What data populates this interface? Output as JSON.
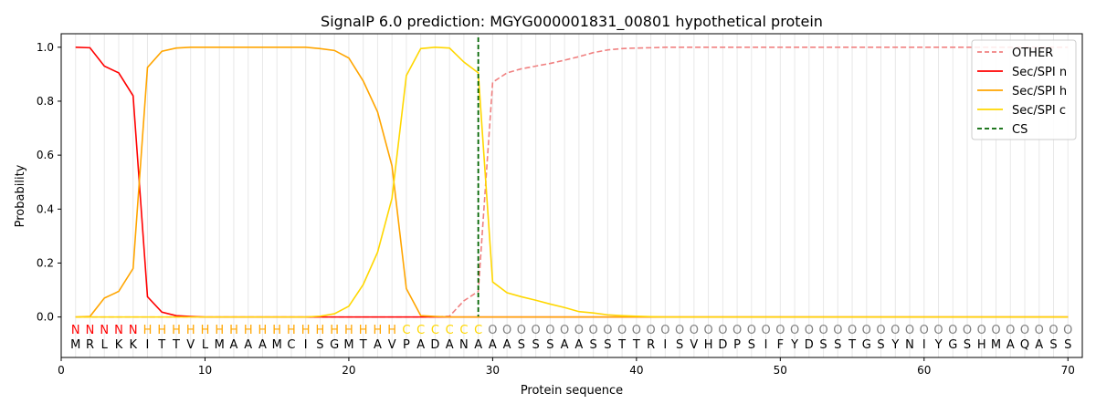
{
  "chart_data": {
    "type": "line",
    "title": "SignalP 6.0 prediction: MGYG000001831_00801 hypothetical protein",
    "xlabel": "Protein sequence",
    "ylabel": "Probability",
    "xlim": [
      0,
      71
    ],
    "ylim": [
      -0.15,
      1.05
    ],
    "xticks": [
      0,
      10,
      20,
      30,
      40,
      50,
      60,
      70
    ],
    "yticks": [
      "0.0",
      "0.2",
      "0.4",
      "0.6",
      "0.8",
      "1.0"
    ],
    "legend_position": "top-right",
    "sequence": "MRLKKITTVLMAAAMCISGMTAVPADANAAASSSAASSTTRISVHDPSIFYDSSTGSYNIYGSHMAQASS",
    "labels": "NNNNNHHHHHHHHHHHHHHHHHHCCCCCCOOOOOOOOOOOOOOOOOOOOOOOOOOOOOOOOOOOOOOOOO",
    "label_colors": {
      "N": "#ff0000",
      "H": "#ffa500",
      "C": "#ffd700",
      "O": "#808080"
    },
    "cs_position": 29,
    "cs_label": "CS",
    "cs_color": "#006400",
    "series": [
      {
        "name": "OTHER",
        "color": "#f08080",
        "dash": true,
        "values": [
          0,
          0,
          0,
          0,
          0,
          0,
          0,
          0,
          0,
          0,
          0,
          0,
          0,
          0,
          0,
          0,
          0,
          0,
          0,
          0,
          0,
          0,
          0,
          0,
          0,
          0,
          0.003,
          0.06,
          0.095,
          0.87,
          0.905,
          0.92,
          0.93,
          0.94,
          0.952,
          0.965,
          0.98,
          0.99,
          0.995,
          0.997,
          0.998,
          1,
          1,
          1,
          1,
          1,
          1,
          1,
          1,
          1,
          1,
          1,
          1,
          1,
          1,
          1,
          1,
          1,
          1,
          1,
          1,
          1,
          1,
          1,
          1,
          1,
          1,
          1,
          1,
          1
        ]
      },
      {
        "name": "Sec/SPI n",
        "color": "#ff0000",
        "values": [
          1.0,
          0.998,
          0.93,
          0.905,
          0.82,
          0.075,
          0.018,
          0.005,
          0.002,
          0,
          0,
          0,
          0,
          0,
          0,
          0,
          0,
          0,
          0,
          0,
          0,
          0,
          0,
          0,
          0,
          0,
          0,
          0,
          0,
          0,
          0,
          0,
          0,
          0,
          0,
          0,
          0,
          0,
          0,
          0,
          0,
          0,
          0,
          0,
          0,
          0,
          0,
          0,
          0,
          0,
          0,
          0,
          0,
          0,
          0,
          0,
          0,
          0,
          0,
          0,
          0,
          0,
          0,
          0,
          0,
          0,
          0,
          0,
          0,
          0
        ]
      },
      {
        "name": "Sec/SPI h",
        "color": "#ffa500",
        "values": [
          0,
          0.002,
          0.07,
          0.095,
          0.18,
          0.925,
          0.985,
          0.997,
          1,
          1,
          1,
          1,
          1,
          1,
          1,
          1,
          1,
          0.995,
          0.988,
          0.96,
          0.875,
          0.76,
          0.56,
          0.105,
          0.005,
          0.002,
          0,
          0,
          0,
          0,
          0,
          0,
          0,
          0,
          0,
          0,
          0,
          0,
          0,
          0,
          0,
          0,
          0,
          0,
          0,
          0,
          0,
          0,
          0,
          0,
          0,
          0,
          0,
          0,
          0,
          0,
          0,
          0,
          0,
          0,
          0,
          0,
          0,
          0,
          0,
          0,
          0,
          0,
          0,
          0
        ]
      },
      {
        "name": "Sec/SPI c",
        "color": "#ffd700",
        "values": [
          0,
          0,
          0,
          0,
          0,
          0,
          0,
          0,
          0,
          0,
          0,
          0,
          0,
          0,
          0,
          0,
          0,
          0.003,
          0.012,
          0.04,
          0.12,
          0.24,
          0.44,
          0.895,
          0.995,
          1.0,
          0.997,
          0.945,
          0.905,
          0.13,
          0.09,
          0.075,
          0.062,
          0.048,
          0.035,
          0.02,
          0.015,
          0.008,
          0.005,
          0.003,
          0.001,
          0,
          0,
          0,
          0,
          0,
          0,
          0,
          0,
          0,
          0,
          0,
          0,
          0,
          0,
          0,
          0,
          0,
          0,
          0,
          0,
          0,
          0,
          0,
          0,
          0,
          0,
          0,
          0,
          0
        ]
      }
    ]
  }
}
